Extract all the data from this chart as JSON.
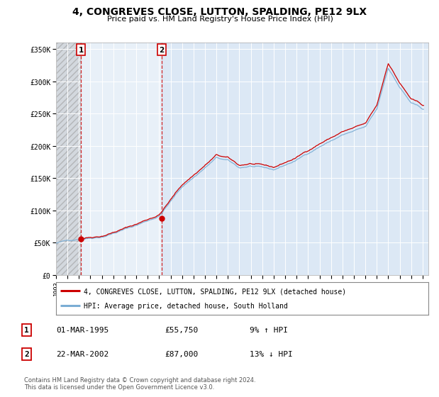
{
  "title": "4, CONGREVES CLOSE, LUTTON, SPALDING, PE12 9LX",
  "subtitle": "Price paid vs. HM Land Registry's House Price Index (HPI)",
  "legend_line1": "4, CONGREVES CLOSE, LUTTON, SPALDING, PE12 9LX (detached house)",
  "legend_line2": "HPI: Average price, detached house, South Holland",
  "transaction1_label": "1",
  "transaction1_date": "01-MAR-1995",
  "transaction1_price": "£55,750",
  "transaction1_hpi": "9% ↑ HPI",
  "transaction1_year": 1995.17,
  "transaction1_value": 55750,
  "transaction2_label": "2",
  "transaction2_date": "22-MAR-2002",
  "transaction2_price": "£87,000",
  "transaction2_hpi": "13% ↓ HPI",
  "transaction2_year": 2002.22,
  "transaction2_value": 87000,
  "hatch_region_start": 1993.0,
  "hatch_region_end": 1995.17,
  "between_region_start": 1995.17,
  "between_region_end": 2002.22,
  "price_line_color": "#cc0000",
  "hpi_line_color": "#7aadd4",
  "vline_color": "#cc0000",
  "background_color": "#ffffff",
  "plot_bg_color": "#dce8f5",
  "ylim_min": 0,
  "ylim_max": 360000,
  "xlim_min": 1993.0,
  "xlim_max": 2025.5,
  "ytick_labels": [
    "£0",
    "£50K",
    "£100K",
    "£150K",
    "£200K",
    "£250K",
    "£300K",
    "£350K"
  ],
  "ytick_values": [
    0,
    50000,
    100000,
    150000,
    200000,
    250000,
    300000,
    350000
  ],
  "xtick_years": [
    1993,
    1994,
    1995,
    1996,
    1997,
    1998,
    1999,
    2000,
    2001,
    2002,
    2003,
    2004,
    2005,
    2006,
    2007,
    2008,
    2009,
    2010,
    2011,
    2012,
    2013,
    2014,
    2015,
    2016,
    2017,
    2018,
    2019,
    2020,
    2021,
    2022,
    2023,
    2024,
    2025
  ],
  "footer": "Contains HM Land Registry data © Crown copyright and database right 2024.\nThis data is licensed under the Open Government Licence v3.0."
}
